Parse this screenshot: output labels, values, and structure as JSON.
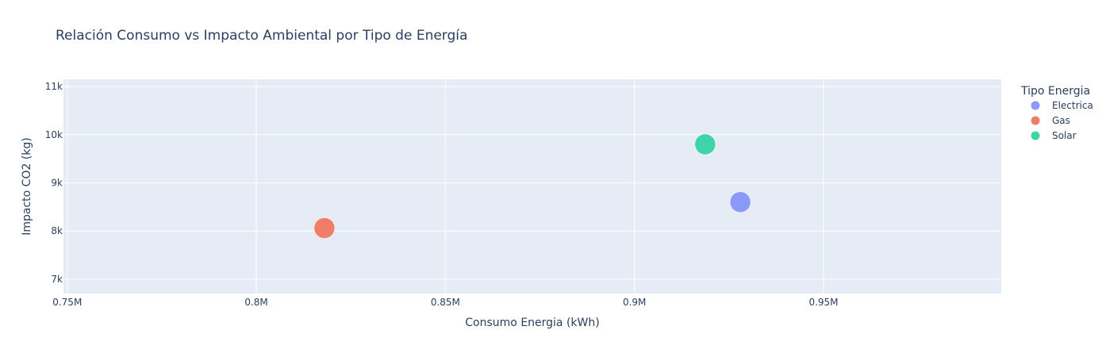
{
  "chart_data": {
    "type": "scatter",
    "title": "Relación Consumo vs Impacto Ambiental por Tipo de Energía",
    "xlabel": "Consumo Energia (kWh)",
    "ylabel": "Impacto CO2 (kg)",
    "xlim": [
      749000,
      997000
    ],
    "ylim": [
      6700,
      11150
    ],
    "x_ticks": [
      {
        "value": 750000,
        "label": "0.75M"
      },
      {
        "value": 800000,
        "label": "0.8M"
      },
      {
        "value": 850000,
        "label": "0.85M"
      },
      {
        "value": 900000,
        "label": "0.9M"
      },
      {
        "value": 950000,
        "label": "0.95M"
      }
    ],
    "y_ticks": [
      {
        "value": 7000,
        "label": "7k"
      },
      {
        "value": 8000,
        "label": "8k"
      },
      {
        "value": 9000,
        "label": "9k"
      },
      {
        "value": 10000,
        "label": "10k"
      },
      {
        "value": 11000,
        "label": "11k"
      }
    ],
    "grid": true,
    "legend": {
      "title": "Tipo Energia",
      "placement": "right"
    },
    "series": [
      {
        "name": "Electrica",
        "color": "#8c9af7",
        "points": [
          {
            "x": 928000,
            "y": 8600
          }
        ]
      },
      {
        "name": "Gas",
        "color": "#ef7d68",
        "points": [
          {
            "x": 818000,
            "y": 8060
          }
        ]
      },
      {
        "name": "Solar",
        "color": "#3fd4a8",
        "points": [
          {
            "x": 918700,
            "y": 9800
          }
        ]
      }
    ]
  }
}
